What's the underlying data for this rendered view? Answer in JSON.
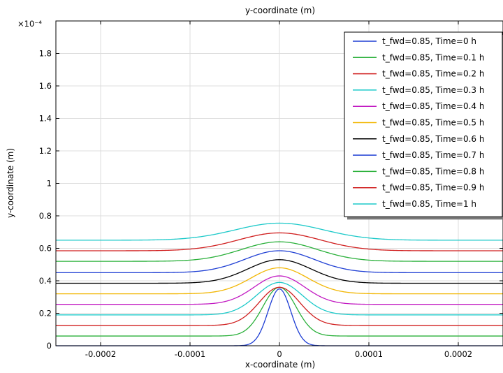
{
  "chart_data": {
    "type": "line",
    "title": "y-coordinate (m)",
    "xlabel": "x-coordinate (m)",
    "ylabel": "y-coordinate (m)",
    "y_multiplier": "×10⁻⁴",
    "xlim": [
      -0.00025,
      0.00025
    ],
    "ylim": [
      0,
      2.0
    ],
    "x_ticks": [
      -0.0002,
      -0.0001,
      0,
      0.0001,
      0.0002
    ],
    "x_tick_labels": [
      "-0.0002",
      "-0.0001",
      "0",
      "0.0001",
      "0.0002"
    ],
    "y_ticks": [
      0,
      0.2,
      0.4,
      0.6,
      0.8,
      1,
      1.2,
      1.4,
      1.6,
      1.8
    ],
    "y_tick_labels": [
      "0",
      "0.2",
      "0.4",
      "0.6",
      "0.8",
      "1",
      "1.2",
      "1.4",
      "1.6",
      "1.8"
    ],
    "grid": true,
    "legend_position": "top-right",
    "series": [
      {
        "name": "t_fwd=0.85, Time=0 h",
        "color": "#1f3fd4",
        "baseline": 0.0,
        "peak": 0.35,
        "width": 1.8e-05
      },
      {
        "name": "t_fwd=0.85, Time=0.1 h",
        "color": "#2ab03a",
        "baseline": 0.06,
        "peak": 0.36,
        "width": 2.6e-05
      },
      {
        "name": "t_fwd=0.85, Time=0.2 h",
        "color": "#d01f1f",
        "baseline": 0.125,
        "peak": 0.36,
        "width": 3.2e-05
      },
      {
        "name": "t_fwd=0.85, Time=0.3 h",
        "color": "#1cc9c9",
        "baseline": 0.19,
        "peak": 0.39,
        "width": 3.6e-05
      },
      {
        "name": "t_fwd=0.85, Time=0.4 h",
        "color": "#c21ac2",
        "baseline": 0.255,
        "peak": 0.43,
        "width": 4e-05
      },
      {
        "name": "t_fwd=0.85, Time=0.5 h",
        "color": "#f2b705",
        "baseline": 0.32,
        "peak": 0.48,
        "width": 4.5e-05
      },
      {
        "name": "t_fwd=0.85, Time=0.6 h",
        "color": "#000000",
        "baseline": 0.385,
        "peak": 0.53,
        "width": 5e-05
      },
      {
        "name": "t_fwd=0.85, Time=0.7 h",
        "color": "#1f3fd4",
        "baseline": 0.45,
        "peak": 0.585,
        "width": 5.5e-05
      },
      {
        "name": "t_fwd=0.85, Time=0.8 h",
        "color": "#2ab03a",
        "baseline": 0.52,
        "peak": 0.64,
        "width": 6e-05
      },
      {
        "name": "t_fwd=0.85, Time=0.9 h",
        "color": "#d01f1f",
        "baseline": 0.585,
        "peak": 0.695,
        "width": 6.5e-05
      },
      {
        "name": "t_fwd=0.85, Time=1 h",
        "color": "#1cc9c9",
        "baseline": 0.65,
        "peak": 0.755,
        "width": 7e-05
      }
    ]
  }
}
